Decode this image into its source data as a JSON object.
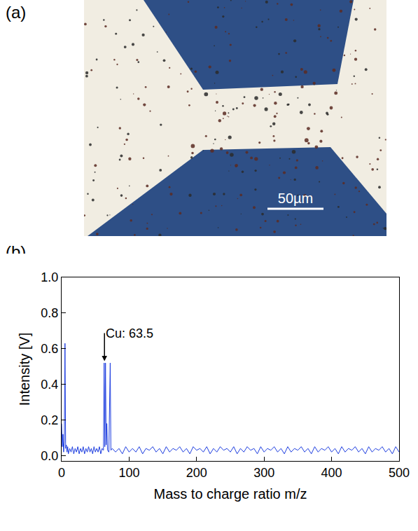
{
  "panel_a": {
    "label": "(a)",
    "scale_bar": "50µm"
  },
  "panel_b": {
    "label": "(b)"
  },
  "chart_data": {
    "type": "line",
    "x_label": "Mass to charge ratio m/z",
    "y_label": "Intensity [V]",
    "color": "#1f3fe0",
    "grid": false,
    "xlim": [
      0,
      500
    ],
    "xticks": [
      0,
      100,
      200,
      300,
      400,
      500
    ],
    "ylim": [
      -0.03,
      1.0
    ],
    "yticks": [
      {
        "value": 0,
        "label": "0.0"
      },
      0.2,
      0.4,
      0.6,
      0.8,
      {
        "value": 1,
        "label": "1.0"
      }
    ],
    "annotation": {
      "text": "Cu: 63.5",
      "x": 63.5,
      "y": 0.53
    },
    "x": [
      0,
      1,
      2,
      3,
      4,
      5,
      6,
      7,
      8,
      9,
      10,
      12,
      14,
      16,
      18,
      20,
      22,
      24,
      26,
      28,
      30,
      32,
      34,
      36,
      38,
      40,
      42,
      44,
      46,
      48,
      50,
      52,
      54,
      56,
      58,
      60,
      62,
      63,
      64,
      65,
      66,
      67,
      68,
      70,
      72,
      73,
      75,
      80,
      85,
      90,
      95,
      100,
      105,
      110,
      115,
      120,
      125,
      130,
      135,
      140,
      145,
      150,
      155,
      160,
      165,
      170,
      175,
      180,
      185,
      190,
      195,
      200,
      205,
      210,
      215,
      220,
      225,
      230,
      235,
      240,
      245,
      250,
      255,
      260,
      265,
      270,
      275,
      280,
      285,
      290,
      295,
      300,
      305,
      310,
      315,
      320,
      325,
      330,
      335,
      340,
      345,
      350,
      355,
      360,
      365,
      370,
      375,
      380,
      385,
      390,
      395,
      400,
      405,
      410,
      415,
      420,
      425,
      430,
      435,
      440,
      445,
      450,
      455,
      460,
      465,
      470,
      475,
      480,
      485,
      490,
      495,
      500
    ],
    "values": [
      0.18,
      0.05,
      0.12,
      0.02,
      0.08,
      0.63,
      0.04,
      0.06,
      0.02,
      0.05,
      0.01,
      0.04,
      0.02,
      0.05,
      0.01,
      0.04,
      0.02,
      0.05,
      0.01,
      0.04,
      0.02,
      0.05,
      0.01,
      0.04,
      0.02,
      0.05,
      0.02,
      0.04,
      0.01,
      0.05,
      0.02,
      0.04,
      0.02,
      0.05,
      0.01,
      0.04,
      0.03,
      0.52,
      0.05,
      0.52,
      0.06,
      0.18,
      0.03,
      0.02,
      0.52,
      0.03,
      0.04,
      0.02,
      0.04,
      0.01,
      0.05,
      0.02,
      0.04,
      0.02,
      0.05,
      0.01,
      0.04,
      0.03,
      0.05,
      0.02,
      0.04,
      0.01,
      0.05,
      0.02,
      0.04,
      0.03,
      0.05,
      0.02,
      0.04,
      0.01,
      0.05,
      0.03,
      0.04,
      0.02,
      0.05,
      0.01,
      0.04,
      0.02,
      0.05,
      0.03,
      0.04,
      0.02,
      0.05,
      0.01,
      0.04,
      0.02,
      0.05,
      0.03,
      0.04,
      0.01,
      0.05,
      0.02,
      0.04,
      0.03,
      0.05,
      0.02,
      0.04,
      0.01,
      0.05,
      0.02,
      0.04,
      0.03,
      0.05,
      0.02,
      0.04,
      0.01,
      0.05,
      0.02,
      0.04,
      0.03,
      0.05,
      0.02,
      0.04,
      0.01,
      0.05,
      0.02,
      0.04,
      0.03,
      0.05,
      0.02,
      0.04,
      0.01,
      0.05,
      0.02,
      0.04,
      0.03,
      0.05,
      0.02,
      0.04,
      0.01,
      0.05,
      0.02
    ]
  }
}
